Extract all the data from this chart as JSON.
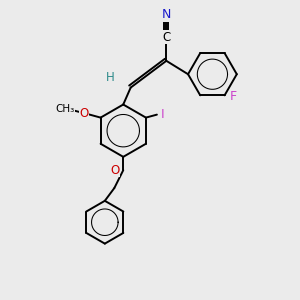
{
  "bg_color": "#ebebeb",
  "bond_color": "#000000",
  "bond_width": 1.4,
  "atoms": {
    "N": {
      "color": "#1a1acc"
    },
    "O": {
      "color": "#cc0000"
    },
    "I": {
      "color": "#cc44cc"
    },
    "F": {
      "color": "#cc44cc"
    },
    "H": {
      "color": "#2e8b8b"
    },
    "C": {
      "color": "#000000"
    }
  }
}
